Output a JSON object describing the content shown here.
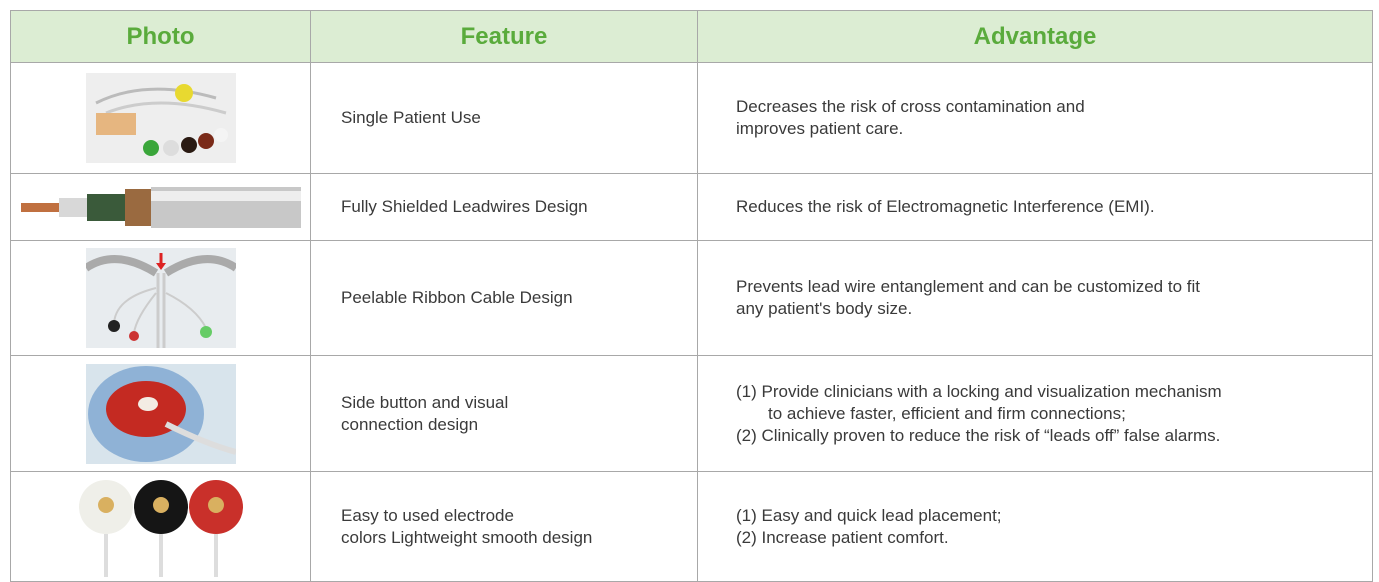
{
  "header": {
    "columns": [
      "Photo",
      "Feature",
      "Advantage"
    ]
  },
  "table": {
    "rows": [
      {
        "feature": [
          "Single Patient Use"
        ],
        "advantage": [
          "Decreases the risk of cross contamination and",
          "improves patient care."
        ]
      },
      {
        "feature": [
          "Fully Shielded Leadwires Design"
        ],
        "advantage": [
          "Reduces the risk of Electromagnetic Interference (EMI)."
        ]
      },
      {
        "feature": [
          "Peelable Ribbon Cable Design"
        ],
        "advantage": [
          "Prevents lead wire entanglement and can be customized to fit",
          "any patient's body size."
        ]
      },
      {
        "feature": [
          "Side button and visual",
          "connection design"
        ],
        "advantage": [
          "(1) Provide clinicians with a locking and visualization mechanism",
          "to achieve faster, efficient and firm connections;",
          "(2) Clinically proven to reduce the risk of “leads off” false alarms."
        ]
      },
      {
        "feature": [
          "Easy to used electrode",
          "colors Lightweight smooth design"
        ],
        "advantage": [
          "(1) Easy and quick lead placement;",
          "(2) Increase patient comfort."
        ]
      }
    ]
  }
}
